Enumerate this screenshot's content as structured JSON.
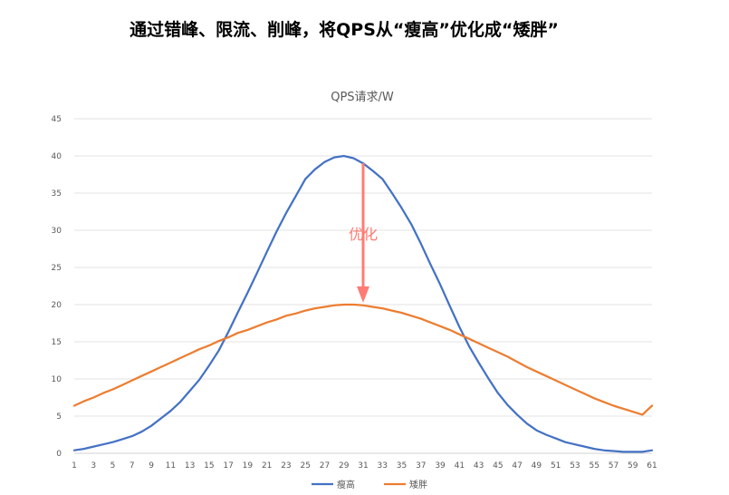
{
  "page": {
    "heading": "通过错峰、限流、削峰，将QPS从“瘦高”优化成“矮胖”"
  },
  "chart_data": {
    "type": "line",
    "title": "QPS请求/W",
    "xlabel": "",
    "ylabel": "",
    "ylim": [
      0,
      45
    ],
    "yticks": [
      0,
      5,
      10,
      15,
      20,
      25,
      30,
      35,
      40,
      45
    ],
    "xlim": [
      1,
      61
    ],
    "xticks": [
      1,
      3,
      5,
      7,
      9,
      11,
      13,
      15,
      17,
      19,
      21,
      23,
      25,
      27,
      29,
      31,
      33,
      35,
      37,
      39,
      41,
      43,
      45,
      47,
      49,
      51,
      53,
      55,
      57,
      59,
      61
    ],
    "grid": true,
    "legend_position": "bottom",
    "x": [
      1,
      2,
      3,
      4,
      5,
      6,
      7,
      8,
      9,
      10,
      11,
      12,
      13,
      14,
      15,
      16,
      17,
      18,
      19,
      20,
      21,
      22,
      23,
      24,
      25,
      26,
      27,
      28,
      29,
      30,
      31,
      32,
      33,
      34,
      35,
      36,
      37,
      38,
      39,
      40,
      41,
      42,
      43,
      44,
      45,
      46,
      47,
      48,
      49,
      50,
      51,
      52,
      53,
      54,
      55,
      56,
      57,
      58,
      59,
      60,
      61
    ],
    "series": [
      {
        "name": "瘦高",
        "color": "#4472C4",
        "values": [
          0.4,
          0.6,
          0.9,
          1.2,
          1.5,
          1.9,
          2.3,
          2.9,
          3.7,
          4.7,
          5.7,
          6.9,
          8.4,
          9.9,
          11.8,
          13.8,
          16.3,
          19.0,
          21.6,
          24.3,
          27.1,
          29.8,
          32.3,
          34.6,
          36.9,
          38.2,
          39.2,
          39.8,
          40.0,
          39.7,
          39.0,
          38.0,
          36.9,
          35.0,
          33.0,
          30.8,
          28.2,
          25.4,
          22.7,
          19.8,
          17.0,
          14.4,
          12.2,
          10.1,
          8.1,
          6.5,
          5.2,
          4.0,
          3.1,
          2.5,
          2.0,
          1.5,
          1.2,
          0.9,
          0.6,
          0.4,
          0.3,
          0.2,
          0.2,
          0.2,
          0.4
        ],
        "_note": ""
      },
      {
        "name": "矮胖",
        "color": "#ED7D31",
        "values": [
          6.4,
          7.0,
          7.5,
          8.1,
          8.6,
          9.2,
          9.8,
          10.4,
          11.0,
          11.6,
          12.2,
          12.8,
          13.4,
          14.0,
          14.5,
          15.1,
          15.6,
          16.2,
          16.6,
          17.1,
          17.6,
          18.0,
          18.5,
          18.8,
          19.2,
          19.5,
          19.7,
          19.9,
          20.0,
          20.0,
          19.9,
          19.7,
          19.5,
          19.2,
          18.9,
          18.5,
          18.1,
          17.6,
          17.1,
          16.6,
          16.0,
          15.4,
          14.8,
          14.2,
          13.6,
          13.0,
          12.3,
          11.6,
          11.0,
          10.4,
          9.8,
          9.2,
          8.6,
          8.0,
          7.4,
          6.9,
          6.4,
          6.0,
          5.6,
          5.2,
          6.4
        ],
        "_note": ""
      }
    ],
    "annotation": {
      "text": "优化",
      "color": "#FF7C74",
      "arrow_from_y": 39.0,
      "arrow_to_y": 20.5,
      "arrow_x": 31
    }
  }
}
